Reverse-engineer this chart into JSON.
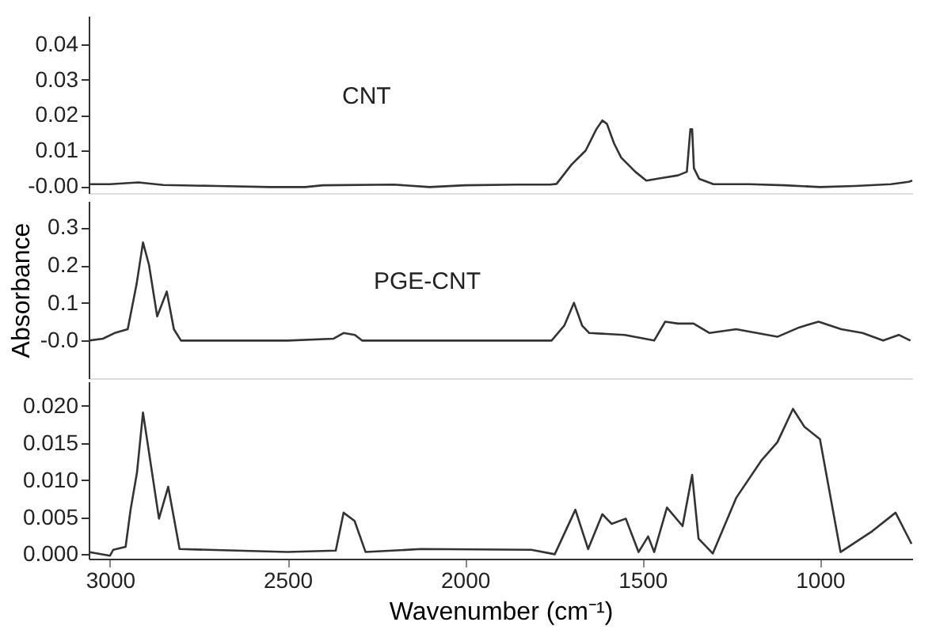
{
  "chart_data": [
    {
      "type": "line",
      "xlim": [
        3060,
        740
      ],
      "ylim": [
        -0.002,
        0.048
      ],
      "yticks": [
        {
          "value": 0,
          "label": "-0.00"
        },
        0.01,
        0.02,
        0.03,
        0.04
      ],
      "tick_labels": "y",
      "grid": false,
      "x": [
        3060,
        3000,
        2920,
        2850,
        2700,
        2550,
        2450,
        2400,
        2200,
        2100,
        2000,
        1850,
        1760,
        1742,
        1700,
        1660,
        1630,
        1613,
        1600,
        1580,
        1560,
        1520,
        1489,
        1450,
        1400,
        1375,
        1365,
        1360,
        1355,
        1340,
        1300,
        1200,
        1100,
        1000,
        900,
        800,
        750,
        740
      ],
      "series": [
        {
          "name": "CNT",
          "color": "#333333",
          "values": [
            0.0005,
            0.0005,
            0.001,
            0.0003,
            0.0,
            -0.0003,
            -0.0003,
            0.0002,
            0.0004,
            -0.0003,
            0.0002,
            0.0004,
            0.0004,
            0.0006,
            0.006,
            0.01,
            0.016,
            0.0185,
            0.0175,
            0.012,
            0.008,
            0.004,
            0.0015,
            0.0022,
            0.003,
            0.004,
            0.016,
            0.016,
            0.005,
            0.002,
            0.0005,
            0.0005,
            0.0002,
            -0.0003,
            0.0,
            0.0005,
            0.0012,
            0.0015
          ]
        }
      ]
    },
    {
      "type": "line",
      "xlim": [
        3060,
        740
      ],
      "ylim": [
        -0.1,
        0.37
      ],
      "yticks": [
        {
          "value": 0,
          "label": "-0.0"
        },
        0.1,
        0.2,
        0.3
      ],
      "ylabel": "Absorbance",
      "tick_labels": "y",
      "grid": false,
      "x": [
        3060,
        3020,
        2987,
        2950,
        2925,
        2907,
        2890,
        2867,
        2840,
        2820,
        2800,
        2500,
        2370,
        2342,
        2310,
        2290,
        2000,
        1756,
        1720,
        1693,
        1670,
        1650,
        1550,
        1467,
        1436,
        1400,
        1356,
        1311,
        1236,
        1120,
        1058,
        1004,
        940,
        880,
        822,
        778,
        745
      ],
      "series": [
        {
          "name": "PGE-CNT",
          "color": "#333333",
          "values": [
            0.0,
            0.005,
            0.02,
            0.03,
            0.15,
            0.26,
            0.2,
            0.064,
            0.13,
            0.03,
            0.0,
            0.0,
            0.005,
            0.02,
            0.015,
            0.0,
            0.0,
            0.0,
            0.04,
            0.1,
            0.04,
            0.02,
            0.015,
            0.0,
            0.05,
            0.045,
            0.045,
            0.02,
            0.03,
            0.01,
            0.035,
            0.05,
            0.03,
            0.02,
            0.0,
            0.015,
            0.0
          ]
        }
      ]
    },
    {
      "type": "line",
      "xlim": [
        3060,
        740
      ],
      "ylim": [
        -0.0006,
        0.0233
      ],
      "yticks": [
        {
          "value": 0,
          "label": "0.000"
        },
        0.005,
        {
          "value": 0.01,
          "label": "0.010"
        },
        0.015,
        {
          "value": 0.02,
          "label": "0.020"
        }
      ],
      "xticks": [
        {
          "value": 3000,
          "label": "3000"
        },
        {
          "value": 2500,
          "label": "2500"
        },
        {
          "value": 2000,
          "label": "2000"
        },
        {
          "value": 1500,
          "label": "1500"
        },
        {
          "value": 1000,
          "label": "1000"
        }
      ],
      "xlabel": "Wavenumber (cm⁻¹)",
      "grid": false,
      "x": [
        3060,
        3000,
        2991,
        2956,
        2942,
        2924,
        2907,
        2862,
        2836,
        2804,
        2500,
        2364,
        2342,
        2311,
        2280,
        2124,
        1813,
        1747,
        1689,
        1653,
        1613,
        1587,
        1547,
        1511,
        1484,
        1467,
        1431,
        1387,
        1360,
        1342,
        1302,
        1236,
        1164,
        1120,
        1076,
        1044,
        1000,
        942,
        853,
        787,
        742
      ],
      "series": [
        {
          "color": "#333333",
          "values": [
            0.0003,
            -0.0002,
            0.0006,
            0.001,
            0.006,
            0.011,
            0.0191,
            0.0048,
            0.0091,
            0.0007,
            0.0003,
            0.0005,
            0.0056,
            0.0045,
            0.0003,
            0.0007,
            0.0006,
            0.0,
            0.006,
            0.0007,
            0.0054,
            0.0041,
            0.0048,
            0.0003,
            0.0024,
            0.0003,
            0.0063,
            0.0038,
            0.0107,
            0.0021,
            0.0001,
            0.0076,
            0.0127,
            0.0151,
            0.0196,
            0.0172,
            0.0155,
            0.0003,
            0.0031,
            0.0056,
            0.0014
          ]
        }
      ]
    }
  ]
}
